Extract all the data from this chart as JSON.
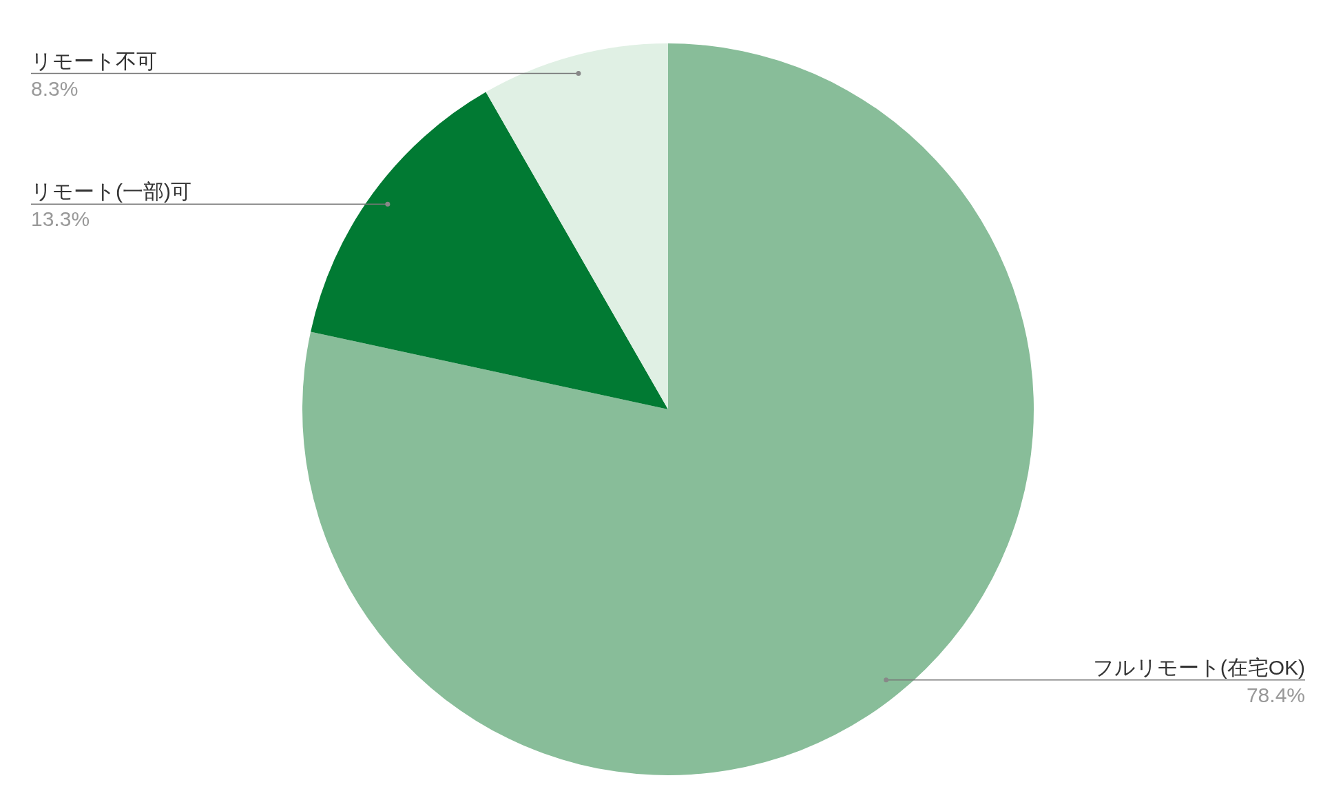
{
  "chart_data": {
    "type": "pie",
    "categories": [
      "フルリモート(在宅OK)",
      "リモート(一部)可",
      "リモート不可"
    ],
    "values": [
      78.4,
      13.3,
      8.3
    ],
    "colors": [
      "#88bd99",
      "#017a33",
      "#e0f0e4"
    ],
    "value_labels": [
      "78.4%",
      "13.3%",
      "8.3%"
    ]
  }
}
